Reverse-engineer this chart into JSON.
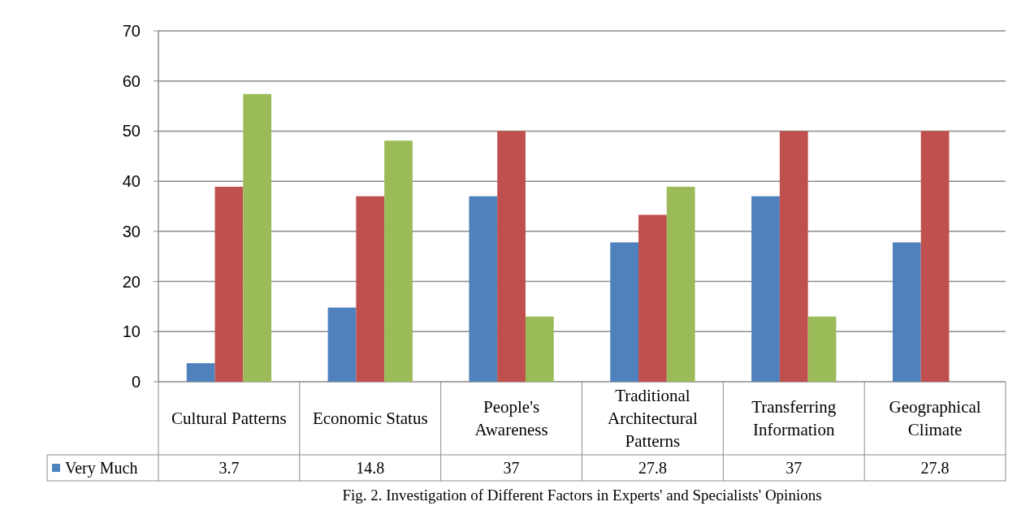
{
  "chart_data": {
    "type": "bar",
    "categories": [
      "Cultural Patterns",
      "Economic Status",
      "People's Awareness",
      "Traditional Architectural Patterns",
      "Transferring Information",
      "Geographical Climate"
    ],
    "series": [
      {
        "name": "Very Much",
        "color": "#4f81bd",
        "values": [
          3.7,
          14.8,
          37,
          27.8,
          37,
          27.8
        ],
        "value_labels": [
          "3.7",
          "14.8",
          "37",
          "27.8",
          "37",
          "27.8"
        ]
      },
      {
        "color": "#c0504d",
        "values": [
          38.9,
          37,
          50,
          33.3,
          50,
          50
        ]
      },
      {
        "color": "#9bbb59",
        "values": [
          57.4,
          48.1,
          13,
          38.9,
          13,
          null
        ]
      }
    ],
    "ylim": [
      0,
      70
    ],
    "yticks": [
      0,
      10,
      20,
      30,
      40,
      50,
      60,
      70
    ],
    "grid": "y",
    "legend": "bottom left",
    "annotations": [
      "Fig. 2. Investigation of Different Factors in Experts' and Specialists' Opinions"
    ]
  }
}
